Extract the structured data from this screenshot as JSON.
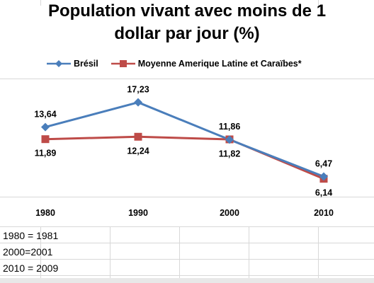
{
  "chart_data": {
    "type": "line",
    "title_line1": "Population vivant avec moins de 1",
    "title_line2": "dollar par jour (%)",
    "categories": [
      "1980",
      "1990",
      "2000",
      "2010"
    ],
    "series": [
      {
        "name": "Brésil",
        "color": "#4a7ebb",
        "marker": "diamond",
        "values": [
          13.64,
          17.23,
          11.82,
          6.47
        ],
        "labels": [
          "13,64",
          "17,23",
          "11,82",
          "6,47"
        ]
      },
      {
        "name": "Moyenne Amerique Latine et Caraïbes*",
        "color": "#be4b48",
        "marker": "square",
        "values": [
          11.89,
          12.24,
          11.86,
          6.14
        ],
        "labels": [
          "11,89",
          "12,24",
          "11,86",
          "6,14"
        ]
      }
    ],
    "legend_position": "top",
    "grid": false
  },
  "notes": [
    "1980 = 1981",
    "2000=2001",
    "2010 = 2009"
  ]
}
